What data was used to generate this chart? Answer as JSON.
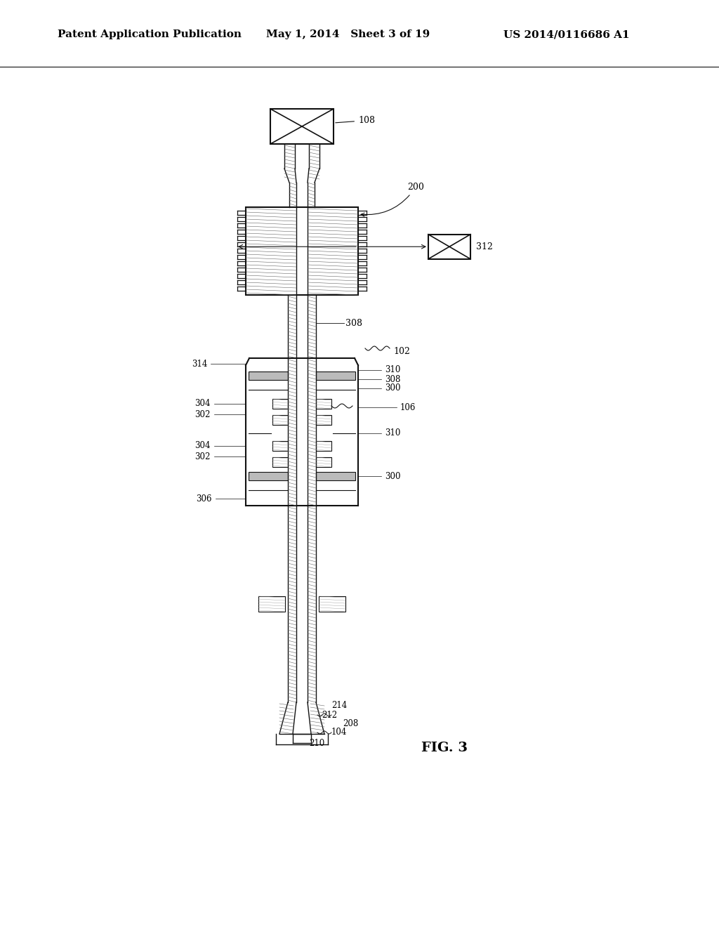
{
  "background_color": "#ffffff",
  "header_left": "Patent Application Publication",
  "header_mid": "May 1, 2014   Sheet 3 of 19",
  "header_right": "US 2014/0116686 A1",
  "header_fontsize": 11,
  "fig_label": "FIG. 3",
  "fig_label_fontsize": 14
}
